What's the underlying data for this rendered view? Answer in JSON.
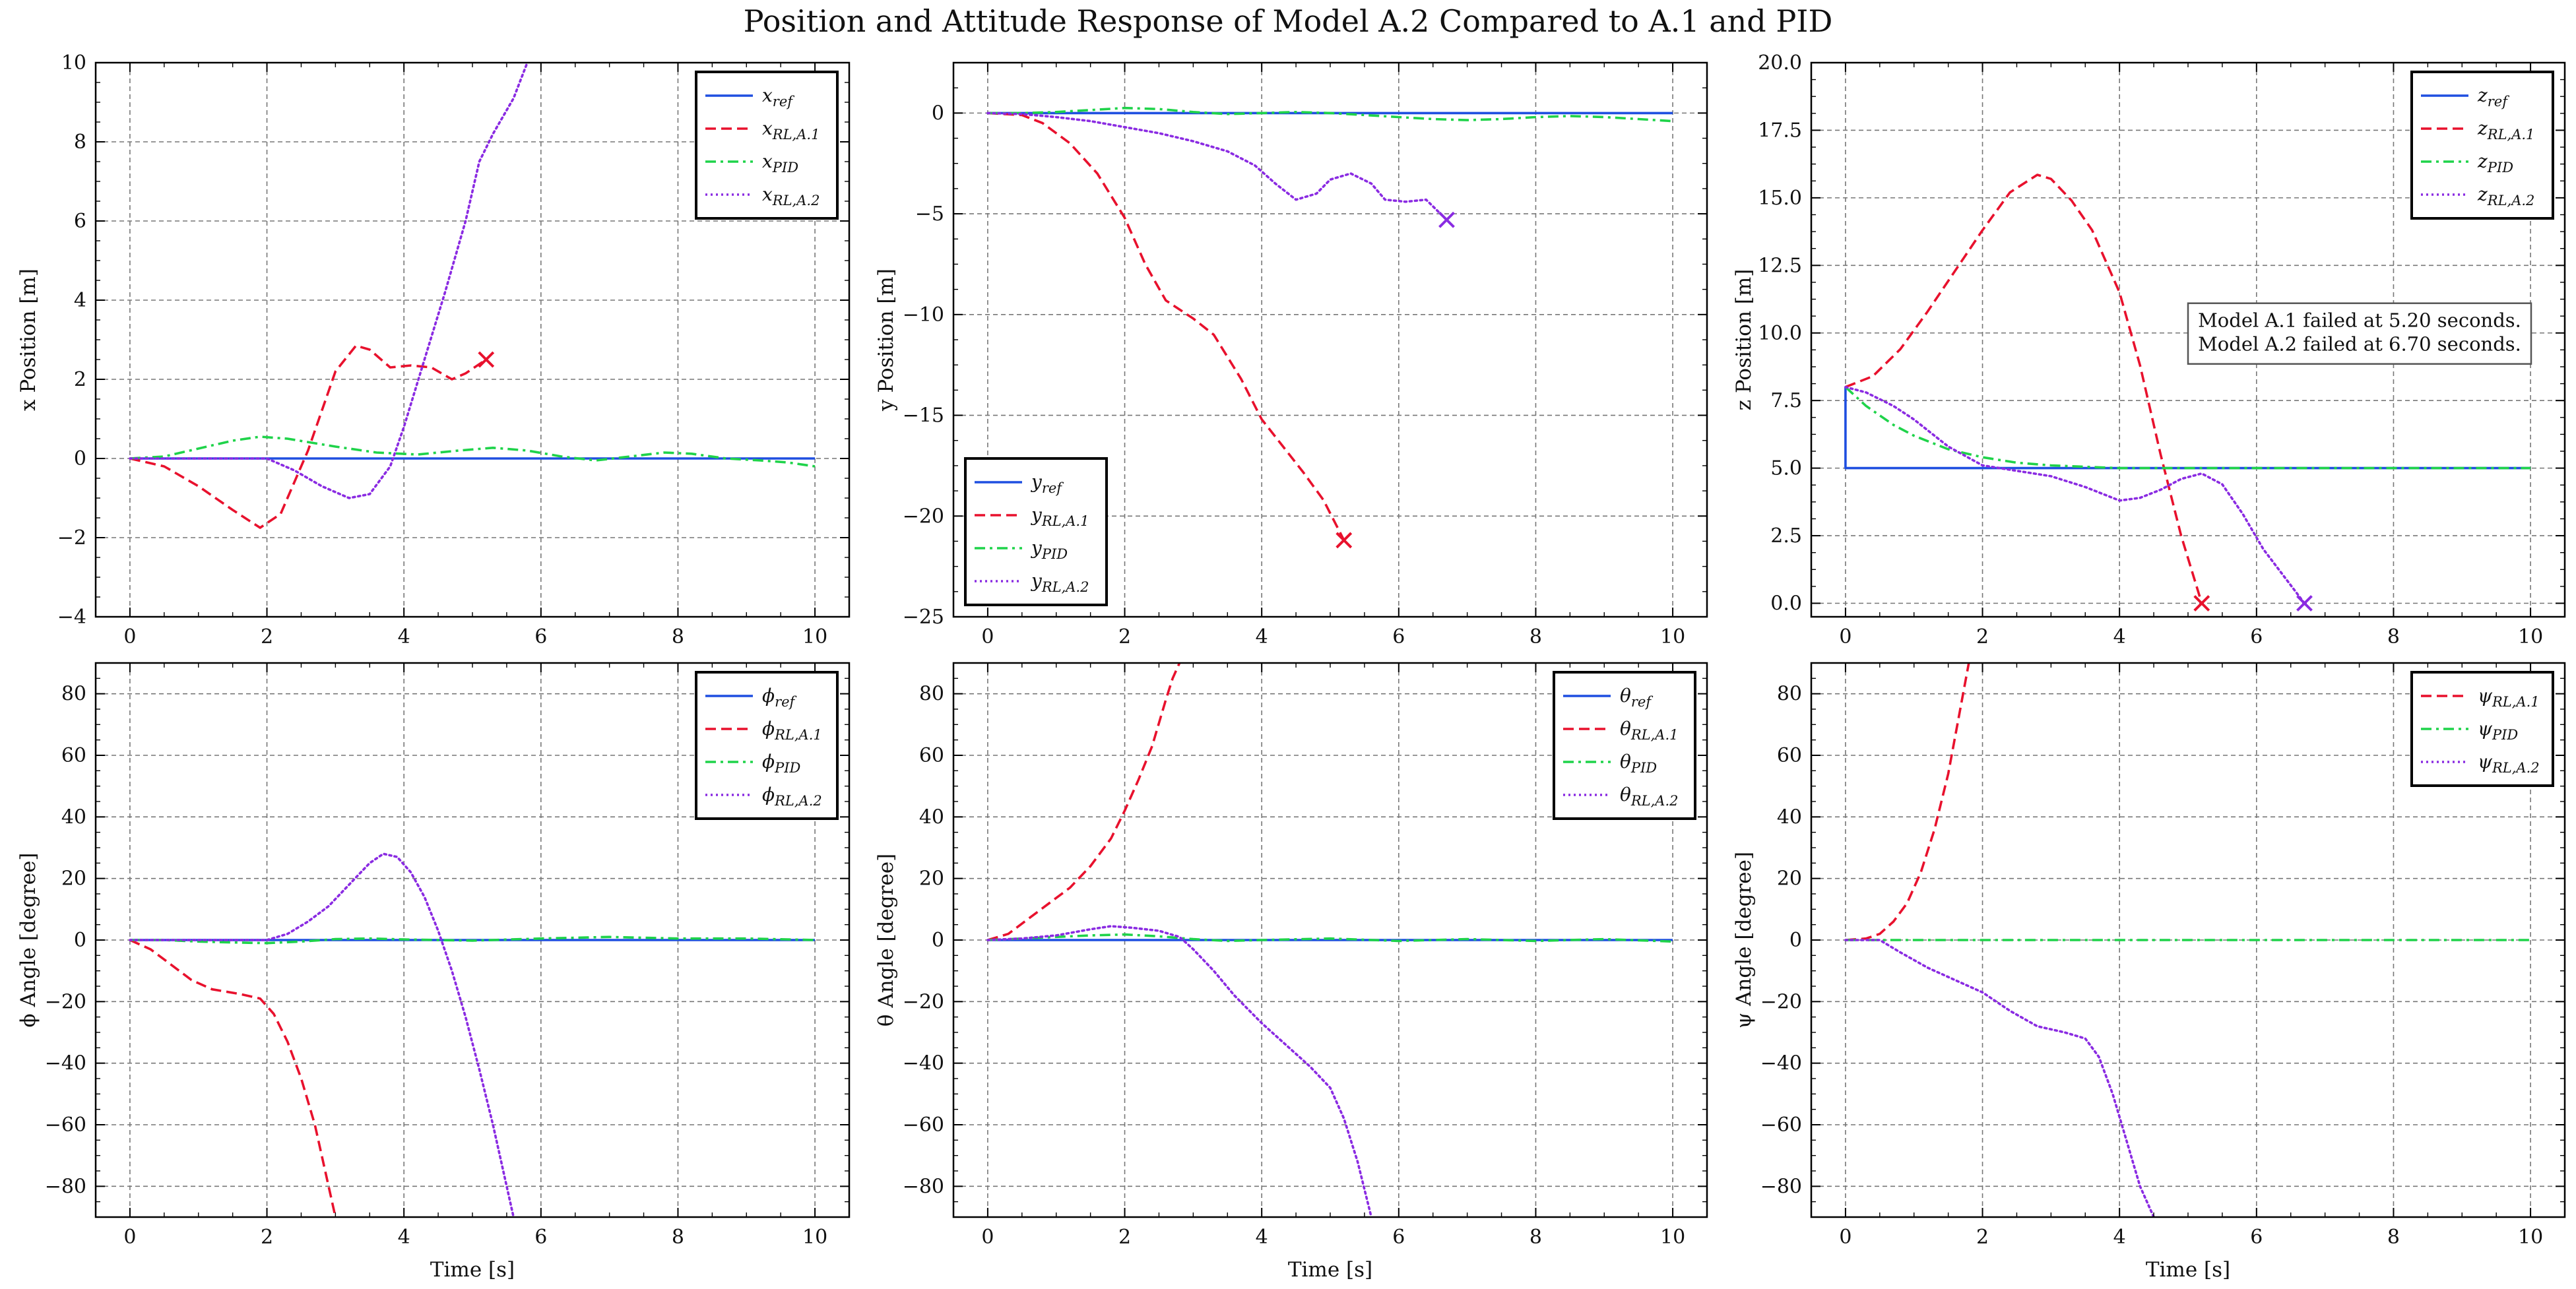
{
  "figure": {
    "title": "Position and Attitude Response of Model A.2 Compared to A.1 and PID"
  },
  "styles": {
    "ref": {
      "color": "#1f4fe0",
      "dash": "solid"
    },
    "a1": {
      "color": "#e8112d",
      "dash": "dashed"
    },
    "pid": {
      "color": "#1fd34a",
      "dash": "dashdot"
    },
    "a2": {
      "color": "#8a2be2",
      "dash": "dotted"
    }
  },
  "chart_data": [
    {
      "type": "line",
      "panel": "top-left",
      "xlabel": "",
      "ylabel": "x Position [m]",
      "xlim": [
        -0.5,
        10.5
      ],
      "ylim": [
        -4,
        10
      ],
      "xticks": [
        0,
        2,
        4,
        6,
        8,
        10
      ],
      "xtick_labels": [
        "0",
        "2",
        "4",
        "6",
        "8",
        "10"
      ],
      "yticks": [
        -4,
        -2,
        0,
        2,
        4,
        6,
        8,
        10
      ],
      "ytick_labels": [
        "−4",
        "−2",
        "0",
        "2",
        "4",
        "6",
        "8",
        "10"
      ],
      "legend_position": "top-right",
      "series": [
        {
          "name": "x_ref",
          "style": "ref",
          "x": [
            0,
            10
          ],
          "y": [
            0,
            0
          ]
        },
        {
          "name": "x_RL,A.1",
          "style": "a1",
          "x": [
            0,
            0.5,
            1.0,
            1.5,
            1.9,
            2.2,
            2.6,
            3.0,
            3.3,
            3.5,
            3.8,
            4.1,
            4.4,
            4.7,
            4.9,
            5.2
          ],
          "y": [
            0,
            -0.2,
            -0.7,
            -1.3,
            -1.75,
            -1.4,
            0.2,
            2.2,
            2.85,
            2.75,
            2.3,
            2.35,
            2.3,
            2.0,
            2.15,
            2.5
          ]
        },
        {
          "name": "x_PID",
          "style": "pid",
          "x": [
            0,
            0.5,
            1.0,
            1.5,
            1.9,
            2.3,
            3.0,
            3.6,
            4.2,
            4.8,
            5.3,
            5.8,
            6.3,
            6.8,
            7.3,
            7.8,
            8.2,
            8.7,
            9.2,
            9.6,
            10
          ],
          "y": [
            0,
            0.05,
            0.25,
            0.45,
            0.55,
            0.5,
            0.3,
            0.15,
            0.1,
            0.2,
            0.27,
            0.2,
            0.05,
            -0.05,
            0.05,
            0.15,
            0.12,
            0.0,
            -0.05,
            -0.1,
            -0.2
          ]
        },
        {
          "name": "x_RL,A.2",
          "style": "a2",
          "x": [
            0,
            0.5,
            1.0,
            1.5,
            2.0,
            2.4,
            2.8,
            3.2,
            3.5,
            3.8,
            4.0,
            4.3,
            4.6,
            4.9,
            5.1,
            5.3,
            5.6,
            5.8
          ],
          "y": [
            0,
            0,
            0,
            0,
            0,
            -0.3,
            -0.7,
            -1.0,
            -0.9,
            -0.2,
            0.8,
            2.5,
            4.2,
            6.0,
            7.5,
            8.2,
            9.1,
            10.0
          ]
        }
      ],
      "markers": [
        {
          "x": 5.2,
          "y": 2.5,
          "style": "a1"
        }
      ],
      "annotations": []
    },
    {
      "type": "line",
      "panel": "top-middle",
      "xlabel": "",
      "ylabel": "y Position [m]",
      "xlim": [
        -0.5,
        10.5
      ],
      "ylim": [
        -25,
        2.5
      ],
      "xticks": [
        0,
        2,
        4,
        6,
        8,
        10
      ],
      "xtick_labels": [
        "0",
        "2",
        "4",
        "6",
        "8",
        "10"
      ],
      "yticks": [
        -25,
        -20,
        -15,
        -10,
        -5,
        0
      ],
      "ytick_labels": [
        "−25",
        "−20",
        "−15",
        "−10",
        "−5",
        "0"
      ],
      "legend_position": "lower-left",
      "series": [
        {
          "name": "y_ref",
          "style": "ref",
          "x": [
            0,
            10
          ],
          "y": [
            0,
            0
          ]
        },
        {
          "name": "y_RL,A.1",
          "style": "a1",
          "x": [
            0,
            0.5,
            0.8,
            1.2,
            1.6,
            2.0,
            2.3,
            2.6,
            3.0,
            3.3,
            3.7,
            4.0,
            4.3,
            4.6,
            4.9,
            5.2
          ],
          "y": [
            0,
            -0.1,
            -0.5,
            -1.5,
            -3.0,
            -5.2,
            -7.5,
            -9.3,
            -10.2,
            -11.0,
            -13.2,
            -15.2,
            -16.5,
            -17.8,
            -19.2,
            -21.2
          ]
        },
        {
          "name": "y_PID",
          "style": "pid",
          "x": [
            0,
            0.5,
            1.0,
            1.5,
            2.0,
            2.5,
            3.0,
            3.5,
            4.0,
            4.5,
            5.0,
            5.5,
            6.0,
            6.5,
            7.0,
            7.5,
            8.0,
            8.5,
            9.0,
            9.5,
            10
          ],
          "y": [
            0,
            0,
            0.05,
            0.15,
            0.25,
            0.2,
            0.05,
            -0.05,
            0,
            0.05,
            0,
            -0.1,
            -0.2,
            -0.3,
            -0.35,
            -0.3,
            -0.2,
            -0.15,
            -0.2,
            -0.3,
            -0.4
          ]
        },
        {
          "name": "y_RL,A.2",
          "style": "a2",
          "x": [
            0,
            0.5,
            1.0,
            1.5,
            2.0,
            2.5,
            3.0,
            3.5,
            3.9,
            4.2,
            4.5,
            4.8,
            5.0,
            5.3,
            5.6,
            5.8,
            6.1,
            6.4,
            6.7
          ],
          "y": [
            0,
            -0.05,
            -0.2,
            -0.4,
            -0.7,
            -1.0,
            -1.4,
            -1.9,
            -2.6,
            -3.5,
            -4.3,
            -4.0,
            -3.3,
            -3.0,
            -3.5,
            -4.3,
            -4.4,
            -4.3,
            -5.3
          ]
        }
      ],
      "markers": [
        {
          "x": 5.2,
          "y": -21.2,
          "style": "a1"
        },
        {
          "x": 6.7,
          "y": -5.3,
          "style": "a2"
        }
      ],
      "annotations": []
    },
    {
      "type": "line",
      "panel": "top-right",
      "xlabel": "",
      "ylabel": "z Position [m]",
      "xlim": [
        -0.5,
        10.5
      ],
      "ylim": [
        -0.5,
        20
      ],
      "xticks": [
        0,
        2,
        4,
        6,
        8,
        10
      ],
      "xtick_labels": [
        "0",
        "2",
        "4",
        "6",
        "8",
        "10"
      ],
      "yticks": [
        0,
        2.5,
        5,
        7.5,
        10,
        12.5,
        15,
        17.5,
        20
      ],
      "ytick_labels": [
        "0.0",
        "2.5",
        "5.0",
        "7.5",
        "10.0",
        "12.5",
        "15.0",
        "17.5",
        "20.0"
      ],
      "legend_position": "top-right",
      "series": [
        {
          "name": "z_ref",
          "style": "ref",
          "x": [
            0,
            0,
            10
          ],
          "y": [
            8.0,
            5.0,
            5.0
          ]
        },
        {
          "name": "z_RL,A.1",
          "style": "a1",
          "x": [
            0,
            0.4,
            0.8,
            1.2,
            1.6,
            2.0,
            2.4,
            2.8,
            3.0,
            3.3,
            3.6,
            4.0,
            4.3,
            4.6,
            4.9,
            5.2
          ],
          "y": [
            8.0,
            8.4,
            9.4,
            10.8,
            12.3,
            13.8,
            15.2,
            15.85,
            15.7,
            14.9,
            13.8,
            11.5,
            8.8,
            5.5,
            2.5,
            0.0
          ]
        },
        {
          "name": "z_PID",
          "style": "pid",
          "x": [
            0,
            0.3,
            0.7,
            1.0,
            1.5,
            2.0,
            2.5,
            3.0,
            3.5,
            4.0,
            5.0,
            6.0,
            7.0,
            8.0,
            9.0,
            10
          ],
          "y": [
            8.0,
            7.3,
            6.6,
            6.2,
            5.7,
            5.4,
            5.2,
            5.1,
            5.05,
            5.0,
            5.0,
            5.0,
            5.0,
            5.0,
            5.0,
            5.0
          ]
        },
        {
          "name": "z_RL,A.2",
          "style": "a2",
          "x": [
            0,
            0.3,
            0.7,
            1.0,
            1.5,
            2.0,
            2.5,
            3.0,
            3.5,
            4.0,
            4.3,
            4.6,
            4.9,
            5.2,
            5.5,
            5.8,
            6.1,
            6.4,
            6.7
          ],
          "y": [
            8.0,
            7.8,
            7.3,
            6.8,
            5.8,
            5.1,
            4.9,
            4.7,
            4.3,
            3.8,
            3.9,
            4.2,
            4.6,
            4.8,
            4.4,
            3.3,
            2.0,
            1.0,
            0.0
          ]
        }
      ],
      "markers": [
        {
          "x": 5.2,
          "y": 0.0,
          "style": "a1"
        },
        {
          "x": 6.7,
          "y": 0.0,
          "style": "a2"
        }
      ],
      "annotations": [
        {
          "lines": [
            "Model A.1 failed at 5.20 seconds.",
            "Model A.2 failed at 6.70 seconds."
          ]
        }
      ]
    },
    {
      "type": "line",
      "panel": "bottom-left",
      "xlabel": "Time [s]",
      "ylabel": "ϕ Angle [degree]",
      "xlim": [
        -0.5,
        10.5
      ],
      "ylim": [
        -90,
        90
      ],
      "xticks": [
        0,
        2,
        4,
        6,
        8,
        10
      ],
      "xtick_labels": [
        "0",
        "2",
        "4",
        "6",
        "8",
        "10"
      ],
      "yticks": [
        -80,
        -60,
        -40,
        -20,
        0,
        20,
        40,
        60,
        80
      ],
      "ytick_labels": [
        "−80",
        "−60",
        "−40",
        "−20",
        "0",
        "20",
        "40",
        "60",
        "80"
      ],
      "legend_position": "top-right",
      "series": [
        {
          "name": "ϕ_ref",
          "style": "ref",
          "x": [
            0,
            10
          ],
          "y": [
            0,
            0
          ]
        },
        {
          "name": "ϕ_RL,A.1",
          "style": "a1",
          "x": [
            0,
            0.3,
            0.6,
            0.9,
            1.2,
            1.6,
            1.9,
            2.1,
            2.3,
            2.5,
            2.7,
            2.9,
            3.0
          ],
          "y": [
            0,
            -3,
            -8,
            -13,
            -16,
            -17.5,
            -19,
            -24,
            -33,
            -45,
            -60,
            -80,
            -90
          ]
        },
        {
          "name": "ϕ_PID",
          "style": "pid",
          "x": [
            0,
            0.5,
            1.0,
            1.5,
            2.0,
            2.5,
            3.0,
            3.5,
            4.0,
            5.0,
            6.0,
            7.0,
            8.0,
            9.0,
            10
          ],
          "y": [
            0,
            0,
            -0.5,
            -0.8,
            -1.0,
            -0.5,
            0.3,
            0.5,
            0.2,
            -0.2,
            0.5,
            1.0,
            0.5,
            0.5,
            0
          ]
        },
        {
          "name": "ϕ_RL,A.2",
          "style": "a2",
          "x": [
            0,
            0.5,
            1.0,
            1.5,
            2.0,
            2.3,
            2.6,
            2.9,
            3.2,
            3.5,
            3.7,
            3.9,
            4.1,
            4.3,
            4.5,
            4.7,
            4.9,
            5.1,
            5.3,
            5.5,
            5.6
          ],
          "y": [
            0,
            0,
            0,
            0,
            0,
            2,
            6,
            11,
            18,
            25,
            28,
            27,
            22,
            14,
            3,
            -10,
            -25,
            -42,
            -60,
            -80,
            -90
          ]
        }
      ],
      "markers": [],
      "annotations": []
    },
    {
      "type": "line",
      "panel": "bottom-middle",
      "xlabel": "Time [s]",
      "ylabel": "θ Angle [degree]",
      "xlim": [
        -0.5,
        10.5
      ],
      "ylim": [
        -90,
        90
      ],
      "xticks": [
        0,
        2,
        4,
        6,
        8,
        10
      ],
      "xtick_labels": [
        "0",
        "2",
        "4",
        "6",
        "8",
        "10"
      ],
      "yticks": [
        -80,
        -60,
        -40,
        -20,
        0,
        20,
        40,
        60,
        80
      ],
      "ytick_labels": [
        "−80",
        "−60",
        "−40",
        "−20",
        "0",
        "20",
        "40",
        "60",
        "80"
      ],
      "legend_position": "top-right",
      "series": [
        {
          "name": "θ_ref",
          "style": "ref",
          "x": [
            0,
            10
          ],
          "y": [
            0,
            0
          ]
        },
        {
          "name": "θ_RL,A.1",
          "style": "a1",
          "x": [
            0,
            0.3,
            0.6,
            0.9,
            1.2,
            1.5,
            1.8,
            2.0,
            2.2,
            2.4,
            2.6,
            2.7,
            2.8
          ],
          "y": [
            0,
            2,
            7,
            12,
            17,
            24,
            33,
            42,
            52,
            63,
            78,
            85,
            90
          ]
        },
        {
          "name": "θ_PID",
          "style": "pid",
          "x": [
            0,
            0.5,
            1.0,
            1.5,
            2.0,
            2.5,
            3.0,
            3.5,
            4.0,
            5.0,
            6.0,
            7.0,
            8.0,
            9.0,
            10
          ],
          "y": [
            0,
            0.5,
            1.0,
            1.5,
            1.8,
            1.2,
            0.3,
            -0.3,
            0,
            0.5,
            -0.3,
            0.3,
            -0.3,
            0.3,
            -0.5
          ]
        },
        {
          "name": "θ_RL,A.2",
          "style": "a2",
          "x": [
            0,
            0.5,
            1.0,
            1.5,
            1.8,
            2.1,
            2.5,
            2.8,
            3.0,
            3.3,
            3.6,
            4.0,
            4.4,
            4.7,
            5.0,
            5.2,
            5.4,
            5.6
          ],
          "y": [
            0,
            0.5,
            1.5,
            3.5,
            4.5,
            4,
            3,
            1,
            -3,
            -10,
            -18,
            -27,
            -35,
            -41,
            -48,
            -58,
            -72,
            -90
          ]
        }
      ],
      "markers": [],
      "annotations": []
    },
    {
      "type": "line",
      "panel": "bottom-right",
      "xlabel": "Time [s]",
      "ylabel": "ψ Angle [degree]",
      "xlim": [
        -0.5,
        10.5
      ],
      "ylim": [
        -90,
        90
      ],
      "xticks": [
        0,
        2,
        4,
        6,
        8,
        10
      ],
      "xtick_labels": [
        "0",
        "2",
        "4",
        "6",
        "8",
        "10"
      ],
      "yticks": [
        -80,
        -60,
        -40,
        -20,
        0,
        20,
        40,
        60,
        80
      ],
      "ytick_labels": [
        "−80",
        "−60",
        "−40",
        "−20",
        "0",
        "20",
        "40",
        "60",
        "80"
      ],
      "legend_position": "top-right",
      "series": [
        {
          "name": "ψ_RL,A.1",
          "style": "a1",
          "x": [
            0,
            0.3,
            0.5,
            0.7,
            0.9,
            1.1,
            1.3,
            1.5,
            1.6,
            1.7,
            1.8
          ],
          "y": [
            0,
            0.5,
            2,
            6,
            12,
            22,
            36,
            54,
            66,
            78,
            90
          ]
        },
        {
          "name": "ψ_PID",
          "style": "pid",
          "x": [
            0,
            10
          ],
          "y": [
            0,
            0
          ]
        },
        {
          "name": "ψ_RL,A.2",
          "style": "a2",
          "x": [
            0,
            0.5,
            0.8,
            1.2,
            1.6,
            2.0,
            2.4,
            2.8,
            3.2,
            3.5,
            3.7,
            3.9,
            4.1,
            4.3,
            4.5
          ],
          "y": [
            0,
            0,
            -4,
            -9,
            -13,
            -17,
            -23,
            -28,
            -30,
            -32,
            -38,
            -50,
            -65,
            -80,
            -90
          ]
        }
      ],
      "markers": [],
      "annotations": []
    }
  ]
}
